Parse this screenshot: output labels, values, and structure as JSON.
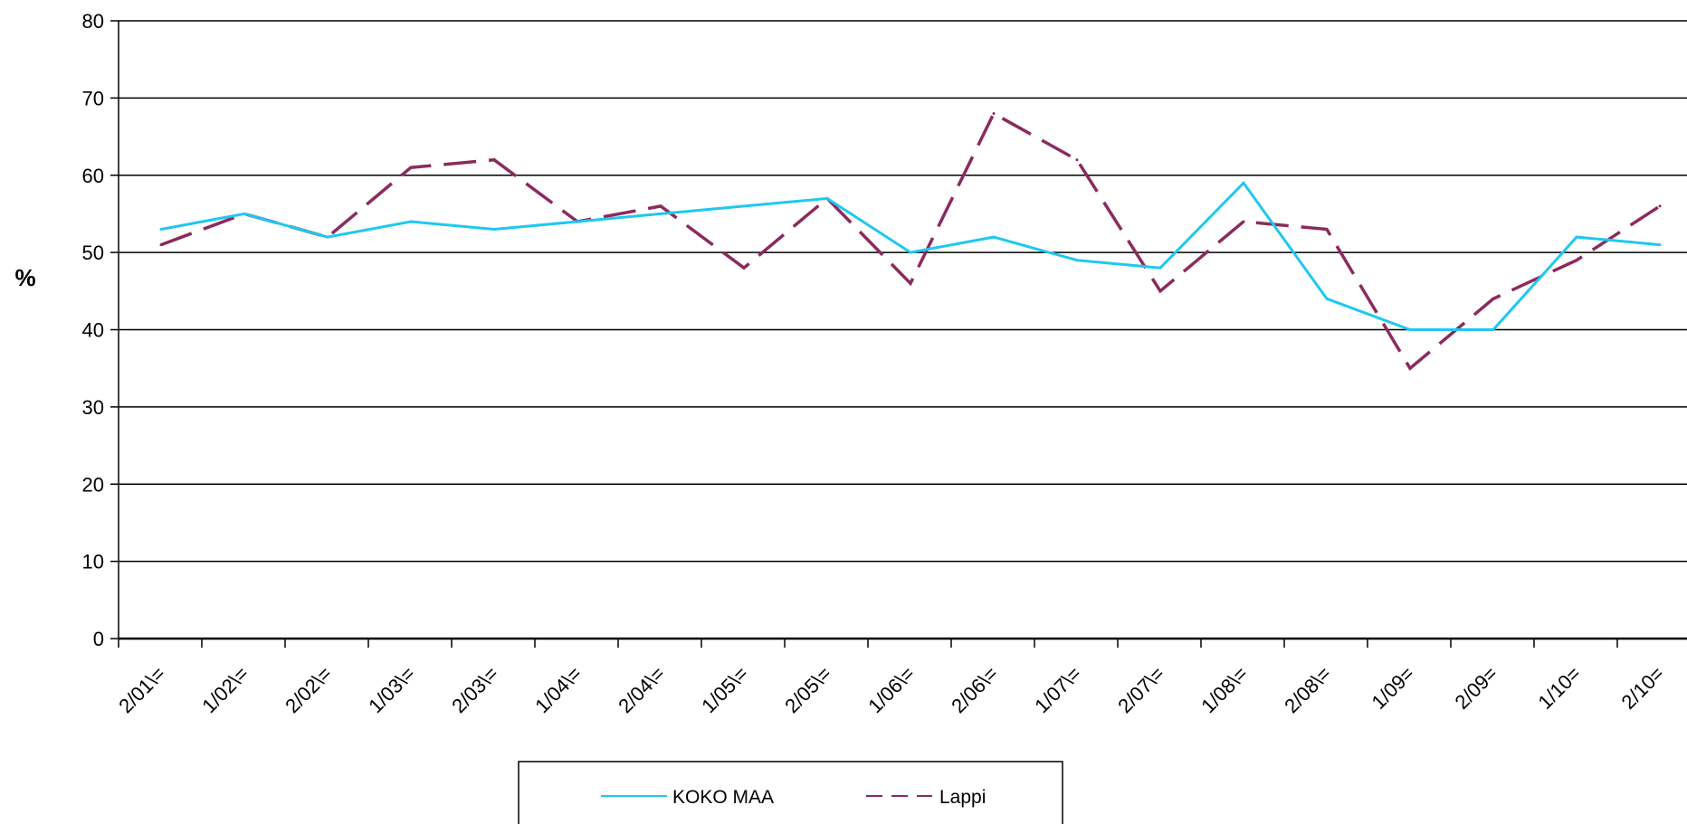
{
  "chart_data": {
    "type": "line",
    "categories": [
      "2/01\\=",
      "1/02\\=",
      "2/02\\=",
      "1/03\\=",
      "2/03\\=",
      "1/04\\=",
      "2/04\\=",
      "1/05\\=",
      "2/05\\=",
      "1/06\\=",
      "2/06\\=",
      "1/07\\=",
      "2/07\\=",
      "1/08\\=",
      "2/08\\=",
      "1/09=",
      "2/09=",
      "1/10=",
      "2/10="
    ],
    "series": [
      {
        "name": "KOKO MAA",
        "color": "#1ec8f0",
        "style": "solid",
        "values": [
          53,
          55,
          52,
          54,
          53,
          54,
          55,
          56,
          57,
          50,
          52,
          49,
          48,
          59,
          44,
          40,
          40,
          52,
          51
        ]
      },
      {
        "name": "Lappi",
        "color": "#8b2a5e",
        "style": "dashed",
        "values": [
          51,
          55,
          52,
          61,
          62,
          54,
          56,
          48,
          57,
          46,
          68,
          62,
          45,
          54,
          53,
          35,
          44,
          49,
          56
        ]
      }
    ],
    "ylabel": "%",
    "ylim": [
      0,
      80
    ],
    "yticks": [
      0,
      10,
      20,
      30,
      40,
      50,
      60,
      70,
      80
    ],
    "grid": true,
    "legend_position": "bottom"
  }
}
